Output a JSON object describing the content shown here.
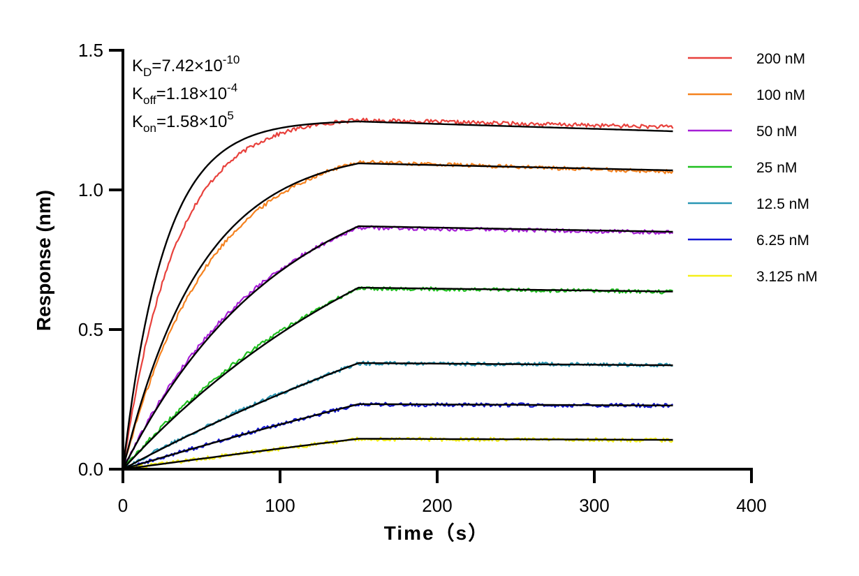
{
  "chart_data": {
    "type": "line",
    "xlabel": "Time（s）",
    "ylabel": "Response (nm)",
    "xlim": [
      0,
      400
    ],
    "ylim": [
      0,
      1.5
    ],
    "xticks": [
      "0",
      "100",
      "200",
      "300",
      "400"
    ],
    "yticks": [
      "0.0",
      "0.5",
      "1.0",
      "1.5"
    ],
    "grid": false,
    "legend_position": "right",
    "association_end_time": 150,
    "dissociation_end_time": 350,
    "annotations": [
      {
        "base": "K",
        "sub": "D",
        "value": "=7.42×10",
        "exp": "-10"
      },
      {
        "base": "K",
        "sub": "off",
        "value": "=1.18×10",
        "exp": "-4"
      },
      {
        "base": "K",
        "sub": "on",
        "value": "=1.58×10",
        "exp": "5"
      }
    ],
    "series": [
      {
        "name": "200 nM",
        "color": "#e8413c",
        "plateau": 1.25,
        "k_obs": 0.03,
        "end": 1.225
      },
      {
        "name": "100 nM",
        "color": "#f5821f",
        "plateau": 1.1,
        "k_obs": 0.018,
        "end": 1.065
      },
      {
        "name": "50 nM",
        "color": "#a61fd6",
        "plateau": 0.865,
        "k_obs": 0.011,
        "end": 0.848
      },
      {
        "name": "25 nM",
        "color": "#1fbf1f",
        "plateau": 0.648,
        "k_obs": 0.006,
        "end": 0.635
      },
      {
        "name": "12.5 nM",
        "color": "#2a97b4",
        "plateau": 0.379,
        "k_obs": 0.003,
        "end": 0.373
      },
      {
        "name": "6.25 nM",
        "color": "#1417d4",
        "plateau": 0.232,
        "k_obs": 0.0015,
        "end": 0.228
      },
      {
        "name": "3.125 nM",
        "color": "#f5ef1a",
        "plateau": 0.108,
        "k_obs": 0.0008,
        "end": 0.104
      }
    ],
    "fit_series": [
      {
        "series": "200 nM",
        "color": "#000000",
        "plateau": 1.245,
        "k_obs": 0.038,
        "end": 1.21
      },
      {
        "series": "100 nM",
        "color": "#000000",
        "plateau": 1.095,
        "k_obs": 0.02,
        "end": 1.07
      },
      {
        "series": "50 nM",
        "color": "#000000",
        "plateau": 0.87,
        "k_obs": 0.01,
        "end": 0.85
      },
      {
        "series": "25 nM",
        "color": "#000000",
        "plateau": 0.65,
        "k_obs": 0.005,
        "end": 0.636
      },
      {
        "series": "12.5 nM",
        "color": "#000000",
        "plateau": 0.38,
        "k_obs": 0.0025,
        "end": 0.372
      },
      {
        "series": "6.25 nM",
        "color": "#000000",
        "plateau": 0.233,
        "k_obs": 0.0012,
        "end": 0.228
      },
      {
        "series": "3.125 nM",
        "color": "#000000",
        "plateau": 0.109,
        "k_obs": 0.0006,
        "end": 0.105
      }
    ]
  }
}
